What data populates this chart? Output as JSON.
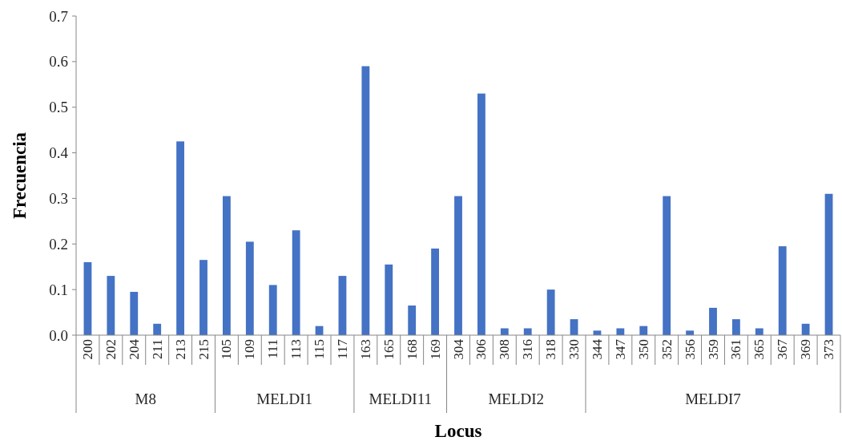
{
  "chart_data": {
    "type": "bar",
    "xlabel": "Locus",
    "ylabel": "Frecuencia",
    "categories": [
      "200",
      "202",
      "204",
      "211",
      "213",
      "215",
      "105",
      "109",
      "111",
      "113",
      "115",
      "117",
      "163",
      "165",
      "168",
      "169",
      "304",
      "306",
      "308",
      "316",
      "318",
      "330",
      "344",
      "347",
      "350",
      "352",
      "356",
      "359",
      "361",
      "365",
      "367",
      "369",
      "373"
    ],
    "values": [
      0.16,
      0.13,
      0.095,
      0.025,
      0.425,
      0.165,
      0.305,
      0.205,
      0.11,
      0.23,
      0.02,
      0.13,
      0.59,
      0.155,
      0.065,
      0.19,
      0.305,
      0.53,
      0.015,
      0.015,
      0.1,
      0.035,
      0.01,
      0.015,
      0.02,
      0.305,
      0.01,
      0.06,
      0.035,
      0.015,
      0.195,
      0.025,
      0.31
    ],
    "color": "#4472c4",
    "ylim": [
      0,
      0.7
    ],
    "yticks": [
      {
        "value": 0,
        "label": "0.0"
      },
      {
        "value": 0.1,
        "label": "0.1"
      },
      {
        "value": 0.2,
        "label": "0.2"
      },
      {
        "value": 0.3,
        "label": "0.3"
      },
      {
        "value": 0.4,
        "label": "0.4"
      },
      {
        "value": 0.5,
        "label": "0.5"
      },
      {
        "value": 0.6,
        "label": "0.6"
      },
      {
        "value": 0.7,
        "label": "0.7"
      }
    ],
    "grid": false,
    "annotations": [
      "M8",
      "MELDI1",
      "MELDI11",
      "MELDI2",
      "MELDI7"
    ]
  }
}
